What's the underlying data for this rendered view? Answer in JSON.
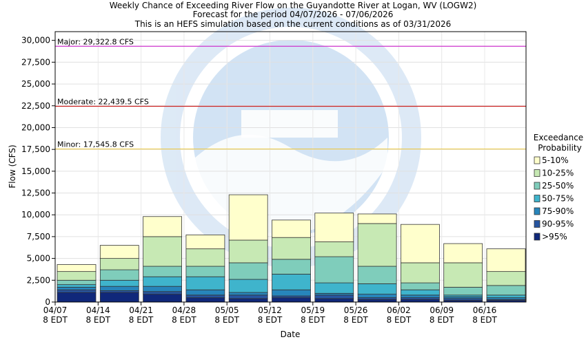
{
  "chart_data": {
    "type": "bar",
    "stacked": true,
    "title": "Weekly Chance of Exceeding River Flow on the Guyandotte River at Logan, WV (LOGW2)",
    "subtitle_1": "Forecast for the period 04/07/2026 - 07/06/2026",
    "subtitle_2": "This is an HEFS simulation based on the current conditions as of 03/31/2026",
    "xlabel": "Date",
    "ylabel": "Flow (CFS)",
    "ylim": [
      0,
      31000
    ],
    "yticks": [
      "0",
      "2,500",
      "5,000",
      "7,500",
      "10,000",
      "12,500",
      "15,000",
      "17,500",
      "20,000",
      "22,500",
      "25,000",
      "27,500",
      "30,000"
    ],
    "ytick_values": [
      0,
      2500,
      5000,
      7500,
      10000,
      12500,
      15000,
      17500,
      20000,
      22500,
      25000,
      27500,
      30000
    ],
    "xtick_dates": [
      "04/07",
      "04/14",
      "04/21",
      "04/28",
      "05/05",
      "05/12",
      "05/19",
      "05/26",
      "06/02",
      "06/09",
      "06/16"
    ],
    "xtick_times": [
      "8 EDT",
      "8 EDT",
      "8 EDT",
      "8 EDT",
      "8 EDT",
      "8 EDT",
      "8 EDT",
      "8 EDT",
      "8 EDT",
      "8 EDT",
      "8 EDT"
    ],
    "grid": true,
    "thresholds": [
      {
        "label": "Major: 29,322.8 CFS",
        "value": 29322.8,
        "color": "#cc33cc"
      },
      {
        "label": "Moderate: 22,439.5 CFS",
        "value": 22439.5,
        "color": "#cc2222"
      },
      {
        "label": "Minor: 17,545.8 CFS",
        "value": 17545.8,
        "color": "#e8c84a"
      }
    ],
    "legend": {
      "title_line1": "Exceedance",
      "title_line2": "Probability",
      "placement": "right"
    },
    "series": [
      {
        "name": ">95%",
        "color": "#10287a"
      },
      {
        "name": "90-95%",
        "color": "#2755a0"
      },
      {
        "name": "75-90%",
        "color": "#2785bb"
      },
      {
        "name": "50-75%",
        "color": "#3fb4cc"
      },
      {
        "name": "25-50%",
        "color": "#7fcdbb"
      },
      {
        "name": "10-25%",
        "color": "#c7e9b4"
      },
      {
        "name": "5-10%",
        "color": "#ffffcc"
      }
    ],
    "bars": [
      {
        "x": "04/07",
        "levels": [
          1100,
          1400,
          1700,
          2000,
          2500,
          3500,
          4300
        ]
      },
      {
        "x": "04/14",
        "levels": [
          1100,
          1300,
          1800,
          2500,
          3700,
          5000,
          6500
        ]
      },
      {
        "x": "04/21",
        "levels": [
          900,
          1200,
          1800,
          2900,
          4100,
          7500,
          9800
        ]
      },
      {
        "x": "04/28",
        "levels": [
          500,
          800,
          1400,
          2900,
          4100,
          6100,
          7700
        ]
      },
      {
        "x": "05/05",
        "levels": [
          400,
          800,
          1100,
          2600,
          4500,
          7100,
          12300
        ]
      },
      {
        "x": "05/12",
        "levels": [
          500,
          700,
          1400,
          3200,
          4900,
          7400,
          9400
        ]
      },
      {
        "x": "05/19",
        "levels": [
          400,
          800,
          1000,
          2200,
          5200,
          6900,
          10200
        ]
      },
      {
        "x": "05/26",
        "levels": [
          300,
          500,
          900,
          2100,
          4100,
          9000,
          10100
        ]
      },
      {
        "x": "06/02",
        "levels": [
          300,
          500,
          800,
          1400,
          2200,
          4500,
          8900
        ]
      },
      {
        "x": "06/09",
        "levels": [
          200,
          400,
          600,
          800,
          1700,
          4500,
          6700
        ]
      },
      {
        "x": "06/16",
        "levels": [
          200,
          300,
          500,
          800,
          1900,
          3500,
          6100
        ]
      }
    ]
  }
}
